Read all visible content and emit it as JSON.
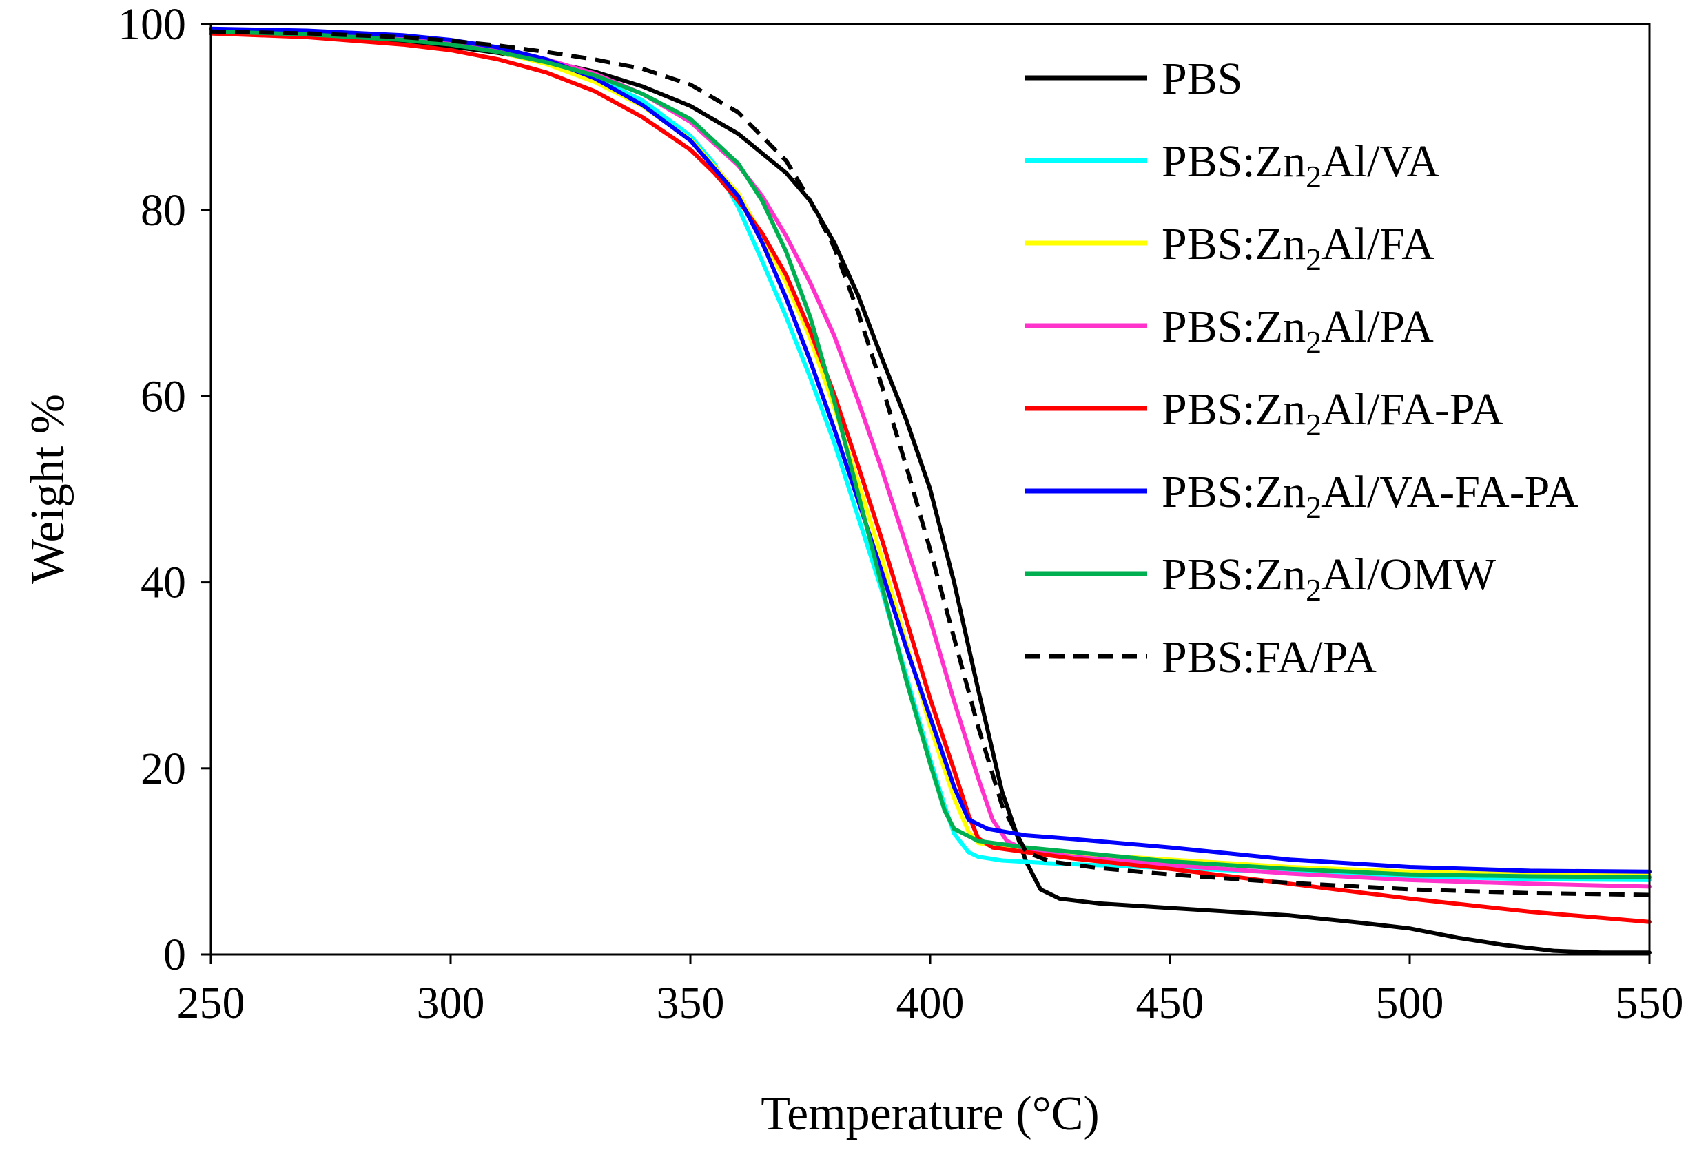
{
  "chart_data": {
    "type": "line",
    "title": "",
    "xlabel": "Temperature (°C)",
    "ylabel": "Weight %",
    "xlim": [
      250,
      550
    ],
    "ylim": [
      0,
      100
    ],
    "xticks": [
      250,
      300,
      350,
      400,
      450,
      500,
      550
    ],
    "yticks": [
      0,
      20,
      40,
      60,
      80,
      100
    ],
    "grid": false,
    "legend_position": "top-right",
    "series": [
      {
        "name": "PBS",
        "label_parts": [
          "PBS"
        ],
        "color": "#000000",
        "dash": "solid",
        "points": [
          [
            250,
            99
          ],
          [
            270,
            98.7
          ],
          [
            290,
            98.1
          ],
          [
            300,
            97.6
          ],
          [
            310,
            96.9
          ],
          [
            320,
            96
          ],
          [
            330,
            94.9
          ],
          [
            340,
            93.3
          ],
          [
            350,
            91.2
          ],
          [
            360,
            88.2
          ],
          [
            370,
            84
          ],
          [
            375,
            81
          ],
          [
            380,
            76.5
          ],
          [
            385,
            70.8
          ],
          [
            390,
            64
          ],
          [
            395,
            57.5
          ],
          [
            400,
            50
          ],
          [
            405,
            40
          ],
          [
            410,
            28.5
          ],
          [
            415,
            17.5
          ],
          [
            420,
            10
          ],
          [
            423,
            7
          ],
          [
            427,
            6
          ],
          [
            435,
            5.5
          ],
          [
            450,
            5
          ],
          [
            475,
            4.2
          ],
          [
            490,
            3.4
          ],
          [
            500,
            2.8
          ],
          [
            510,
            1.8
          ],
          [
            520,
            1.0
          ],
          [
            530,
            0.4
          ],
          [
            540,
            0.2
          ],
          [
            550,
            0.2
          ]
        ]
      },
      {
        "name": "PBS:Zn2Al/VA",
        "label_parts": [
          "PBS:Zn",
          "2",
          "Al/VA"
        ],
        "color": "#00FFFF",
        "dash": "solid",
        "points": [
          [
            250,
            99.3
          ],
          [
            270,
            99.1
          ],
          [
            290,
            98.6
          ],
          [
            300,
            98
          ],
          [
            310,
            97.2
          ],
          [
            320,
            96
          ],
          [
            330,
            94.3
          ],
          [
            340,
            91.8
          ],
          [
            350,
            88
          ],
          [
            355,
            85
          ],
          [
            360,
            80.3
          ],
          [
            365,
            74.5
          ],
          [
            370,
            68.5
          ],
          [
            375,
            62
          ],
          [
            380,
            55
          ],
          [
            385,
            47
          ],
          [
            390,
            39
          ],
          [
            395,
            30
          ],
          [
            400,
            21
          ],
          [
            403,
            16
          ],
          [
            405,
            13
          ],
          [
            408,
            11
          ],
          [
            410,
            10.5
          ],
          [
            415,
            10.1
          ],
          [
            425,
            9.8
          ],
          [
            450,
            9.3
          ],
          [
            475,
            8.8
          ],
          [
            500,
            8.4
          ],
          [
            525,
            8.1
          ],
          [
            550,
            8
          ]
        ]
      },
      {
        "name": "PBS:Zn2Al/FA",
        "label_parts": [
          "PBS:Zn",
          "2",
          "Al/FA"
        ],
        "color": "#FFFF00",
        "dash": "solid",
        "points": [
          [
            250,
            99
          ],
          [
            270,
            98.9
          ],
          [
            290,
            98.4
          ],
          [
            300,
            97.9
          ],
          [
            310,
            97
          ],
          [
            320,
            95.7
          ],
          [
            330,
            93.8
          ],
          [
            340,
            91.2
          ],
          [
            350,
            87.6
          ],
          [
            360,
            81.8
          ],
          [
            365,
            77.2
          ],
          [
            370,
            72.2
          ],
          [
            375,
            66.2
          ],
          [
            380,
            58.8
          ],
          [
            385,
            50.8
          ],
          [
            390,
            42.5
          ],
          [
            395,
            33.5
          ],
          [
            400,
            24.5
          ],
          [
            405,
            16.8
          ],
          [
            408,
            13.2
          ],
          [
            410,
            12
          ],
          [
            415,
            11.5
          ],
          [
            425,
            11
          ],
          [
            450,
            10.2
          ],
          [
            475,
            9.4
          ],
          [
            500,
            8.9
          ],
          [
            525,
            8.6
          ],
          [
            550,
            8.5
          ]
        ]
      },
      {
        "name": "PBS:Zn2Al/PA",
        "label_parts": [
          "PBS:Zn",
          "2",
          "Al/PA"
        ],
        "color": "#FF33CC",
        "dash": "solid",
        "points": [
          [
            250,
            99.2
          ],
          [
            270,
            99
          ],
          [
            290,
            98.5
          ],
          [
            300,
            98
          ],
          [
            310,
            97.3
          ],
          [
            320,
            96.2
          ],
          [
            330,
            94.7
          ],
          [
            340,
            92.5
          ],
          [
            350,
            89.5
          ],
          [
            360,
            84.8
          ],
          [
            365,
            81.5
          ],
          [
            370,
            77.2
          ],
          [
            375,
            72.2
          ],
          [
            380,
            66.5
          ],
          [
            385,
            59.5
          ],
          [
            390,
            52
          ],
          [
            395,
            44
          ],
          [
            400,
            36
          ],
          [
            405,
            27.2
          ],
          [
            410,
            19
          ],
          [
            413,
            14.5
          ],
          [
            416,
            12.2
          ],
          [
            420,
            11.2
          ],
          [
            430,
            10.5
          ],
          [
            450,
            9.6
          ],
          [
            475,
            8.7
          ],
          [
            500,
            8
          ],
          [
            525,
            7.6
          ],
          [
            550,
            7.3
          ]
        ]
      },
      {
        "name": "PBS:Zn2Al/FA-PA",
        "label_parts": [
          "PBS:Zn",
          "2",
          "Al/FA-PA"
        ],
        "color": "#FF0000",
        "dash": "solid",
        "points": [
          [
            250,
            99
          ],
          [
            270,
            98.6
          ],
          [
            290,
            97.8
          ],
          [
            300,
            97.2
          ],
          [
            310,
            96.2
          ],
          [
            320,
            94.8
          ],
          [
            330,
            92.8
          ],
          [
            340,
            90
          ],
          [
            350,
            86.5
          ],
          [
            355,
            84
          ],
          [
            360,
            81
          ],
          [
            365,
            77.5
          ],
          [
            370,
            73
          ],
          [
            375,
            67
          ],
          [
            380,
            60.2
          ],
          [
            385,
            52.5
          ],
          [
            390,
            44.5
          ],
          [
            395,
            36
          ],
          [
            400,
            27.5
          ],
          [
            405,
            19.8
          ],
          [
            408,
            15
          ],
          [
            410,
            12.5
          ],
          [
            413,
            11.5
          ],
          [
            420,
            11
          ],
          [
            430,
            10.3
          ],
          [
            450,
            9.2
          ],
          [
            475,
            7.6
          ],
          [
            500,
            6
          ],
          [
            525,
            4.6
          ],
          [
            550,
            3.5
          ]
        ]
      },
      {
        "name": "PBS:Zn2Al/VA-FA-PA",
        "label_parts": [
          "PBS:Zn",
          "2",
          "Al/VA-FA-PA"
        ],
        "color": "#0000FF",
        "dash": "solid",
        "points": [
          [
            250,
            99.5
          ],
          [
            270,
            99.3
          ],
          [
            290,
            98.8
          ],
          [
            300,
            98.3
          ],
          [
            310,
            97.5
          ],
          [
            320,
            96.2
          ],
          [
            330,
            94.2
          ],
          [
            340,
            91.3
          ],
          [
            350,
            87.5
          ],
          [
            360,
            81.5
          ],
          [
            365,
            76.5
          ],
          [
            370,
            70.5
          ],
          [
            375,
            63.8
          ],
          [
            380,
            56.5
          ],
          [
            385,
            48.8
          ],
          [
            390,
            41
          ],
          [
            395,
            33
          ],
          [
            400,
            25.5
          ],
          [
            405,
            18
          ],
          [
            408,
            14.5
          ],
          [
            412,
            13.5
          ],
          [
            420,
            12.8
          ],
          [
            430,
            12.4
          ],
          [
            450,
            11.5
          ],
          [
            475,
            10.2
          ],
          [
            500,
            9.4
          ],
          [
            525,
            9
          ],
          [
            550,
            8.9
          ]
        ]
      },
      {
        "name": "PBS:Zn2Al/OMW",
        "label_parts": [
          "PBS:Zn",
          "2",
          "Al/OMW"
        ],
        "color": "#00B050",
        "dash": "solid",
        "points": [
          [
            250,
            99.2
          ],
          [
            270,
            98.9
          ],
          [
            290,
            98.3
          ],
          [
            300,
            97.8
          ],
          [
            310,
            97
          ],
          [
            320,
            95.9
          ],
          [
            330,
            94.5
          ],
          [
            340,
            92.5
          ],
          [
            350,
            89.8
          ],
          [
            360,
            85
          ],
          [
            365,
            81
          ],
          [
            370,
            75.5
          ],
          [
            375,
            68.5
          ],
          [
            380,
            59.5
          ],
          [
            385,
            49.5
          ],
          [
            390,
            39.5
          ],
          [
            395,
            29.5
          ],
          [
            400,
            20.5
          ],
          [
            403,
            15.5
          ],
          [
            405,
            13.5
          ],
          [
            410,
            12.2
          ],
          [
            420,
            11.5
          ],
          [
            430,
            11
          ],
          [
            450,
            10
          ],
          [
            475,
            9.2
          ],
          [
            500,
            8.6
          ],
          [
            525,
            8.4
          ],
          [
            550,
            8.3
          ]
        ]
      },
      {
        "name": "PBS:FA/PA",
        "label_parts": [
          "PBS:FA/PA"
        ],
        "color": "#000000",
        "dash": "dashed",
        "points": [
          [
            250,
            99.2
          ],
          [
            270,
            99
          ],
          [
            290,
            98.6
          ],
          [
            300,
            98.2
          ],
          [
            310,
            97.7
          ],
          [
            320,
            97
          ],
          [
            330,
            96.2
          ],
          [
            340,
            95.2
          ],
          [
            350,
            93.5
          ],
          [
            360,
            90.5
          ],
          [
            370,
            85.3
          ],
          [
            375,
            81
          ],
          [
            380,
            76
          ],
          [
            385,
            69
          ],
          [
            390,
            61
          ],
          [
            395,
            52.5
          ],
          [
            400,
            43.5
          ],
          [
            405,
            34
          ],
          [
            410,
            24.5
          ],
          [
            415,
            16
          ],
          [
            420,
            11
          ],
          [
            425,
            10
          ],
          [
            435,
            9.3
          ],
          [
            450,
            8.6
          ],
          [
            475,
            7.7
          ],
          [
            500,
            7
          ],
          [
            525,
            6.6
          ],
          [
            550,
            6.4
          ]
        ]
      }
    ]
  }
}
